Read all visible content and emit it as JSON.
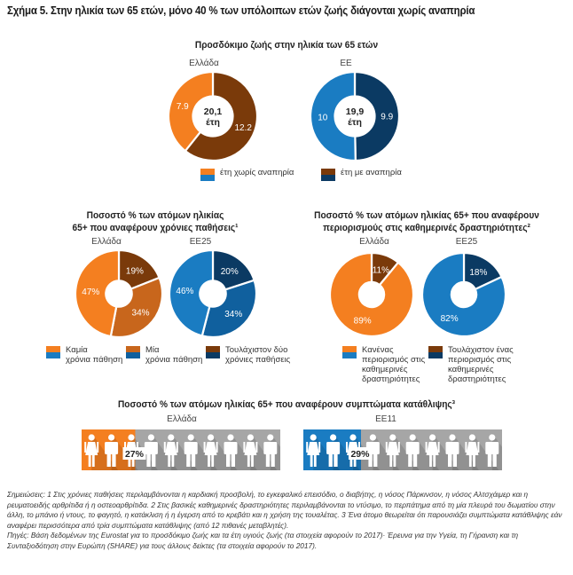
{
  "figure_title": "Σχήμα 5. Στην ηλικία των 65 ετών, μόνο 40 % των υπόλοιπων ετών ζωής διάγονται χωρίς αναπηρία",
  "colors": {
    "greece_light": "#f47f20",
    "greece_mid": "#c8661c",
    "greece_dark": "#7a3a0a",
    "eu_light": "#1a7cc2",
    "eu_mid": "#10609e",
    "eu_dark": "#0b3a63",
    "grey_bar": "#a6a6a6"
  },
  "chart_data": [
    {
      "type": "pie",
      "title": "Προσδόκιμο ζωής στην ηλικία των 65 ετών",
      "charts": [
        {
          "label": "Ελλάδα",
          "center_value": "20,1",
          "center_unit": "έτη",
          "slices": [
            {
              "name": "έτη χωρίς αναπηρία",
              "value": 7.9,
              "label": "7.9"
            },
            {
              "name": "έτη με αναπηρία",
              "value": 12.2,
              "label": "12.2"
            }
          ]
        },
        {
          "label": "ΕΕ",
          "center_value": "19,9",
          "center_unit": "έτη",
          "slices": [
            {
              "name": "έτη χωρίς αναπηρία",
              "value": 10,
              "label": "10"
            },
            {
              "name": "έτη με αναπηρία",
              "value": 9.9,
              "label": "9.9"
            }
          ]
        }
      ],
      "legend": [
        "έτη χωρίς αναπηρία",
        "έτη με αναπηρία"
      ]
    },
    {
      "type": "pie",
      "title_line1": "Ποσοστό % των ατόμων ηλικίας",
      "title_line2": "65+ που αναφέρουν χρόνιες παθήσεις¹",
      "charts": [
        {
          "label": "Ελλάδα",
          "slices": [
            {
              "name": "Καμία χρόνια πάθηση",
              "value": 47,
              "label": "47%"
            },
            {
              "name": "Μία χρόνια πάθηση",
              "value": 34,
              "label": "34%"
            },
            {
              "name": "Τουλάχιστον δύο χρόνιες παθήσεις",
              "value": 19,
              "label": "19%"
            }
          ]
        },
        {
          "label": "ΕΕ25",
          "slices": [
            {
              "name": "Καμία χρόνια πάθηση",
              "value": 46,
              "label": "46%"
            },
            {
              "name": "Μία χρόνια πάθηση",
              "value": 34,
              "label": "34%"
            },
            {
              "name": "Τουλάχιστον δύο χρόνιες παθήσεις",
              "value": 20,
              "label": "20%"
            }
          ]
        }
      ],
      "legend": [
        {
          "line1": "Καμία",
          "line2": "χρόνια πάθηση"
        },
        {
          "line1": "Μία",
          "line2": "χρόνια πάθηση"
        },
        {
          "line1": "Τουλάχιστον δύο",
          "line2": "χρόνιες παθήσεις"
        }
      ]
    },
    {
      "type": "pie",
      "title_line1": "Ποσοστό % των ατόμων ηλικίας 65+ που αναφέρουν",
      "title_line2": "περιορισμούς στις καθημερινές δραστηριότητες²",
      "charts": [
        {
          "label": "Ελλάδα",
          "slices": [
            {
              "name": "Κανένας περιορισμός στις καθημερινές δραστηριότητες",
              "value": 89,
              "label": "89%"
            },
            {
              "name": "Τουλάχιστον ένας περιορισμός στις καθημερινές δραστηριότητες",
              "value": 11,
              "label": "11%"
            }
          ]
        },
        {
          "label": "ΕΕ25",
          "slices": [
            {
              "name": "Κανένας περιορισμός στις καθημερινές δραστηριότητες",
              "value": 82,
              "label": "82%"
            },
            {
              "name": "Τουλάχιστον ένας περιορισμός στις καθημερινές δραστηριότητες",
              "value": 18,
              "label": "18%"
            }
          ]
        }
      ],
      "legend": [
        {
          "lines": [
            "Κανένας",
            "περιορισμός στις",
            "καθημερινές",
            "δραστηριότητες"
          ]
        },
        {
          "lines": [
            "Τουλάχιστον ένας",
            "περιορισμός στις",
            "καθημερινές",
            "δραστηριότητες"
          ]
        }
      ]
    },
    {
      "type": "bar",
      "title": "Ποσοστό % των ατόμων ηλικίας 65+ που αναφέρουν συμπτώματα κατάθλιψης³",
      "charts": [
        {
          "label": "Ελλάδα",
          "value": 27,
          "label_text": "27%",
          "max": 100,
          "icons": 10
        },
        {
          "label": "ΕΕ11",
          "value": 29,
          "label_text": "29%",
          "max": 100,
          "icons": 10
        }
      ]
    }
  ],
  "notes": {
    "text1": "Σημειώσεις: 1 Στις χρόνιες παθήσεις περιλαμβάνονται η καρδιακή προσβολή, το εγκεφαλικό επεισόδιο, ο διαβήτης, η νόσος Πάρκινσον, η νόσος Αλτσχάιμερ και η ρευματοειδής αρθρίτιδα ή η οστεοαρθρίτιδα. 2 Στις βασικές καθημερινές δραστηριότητες περιλαμβάνονται το ντύσιμο, το περπάτημα από τη μία πλευρά του δωματίου στην άλλη, το μπάνιο ή ντους, το φαγητό, η κατάκλιση ή η έγερση από το κρεβάτι και η χρήση της τουαλέτας. 3 Ένα άτομο θεωρείται ότι παρουσιάζει συμπτώματα κατάθλιψης εάν αναφέρει περισσότερα από τρία συμπτώματα κατάθλιψης (από 12 πιθανές μεταβλητές).",
    "text2": "Πηγές: Βάση δεδομένων της Eurostat για το προσδόκιμο ζωής και τα έτη υγιούς ζωής (τα στοιχεία αφορούν το 2017)· Έρευνα για την Υγεία, τη Γήρανση και τη Συνταξιοδότηση στην Ευρώπη (SHARE) για τους άλλους δείκτες (τα στοιχεία αφορούν το 2017)."
  }
}
